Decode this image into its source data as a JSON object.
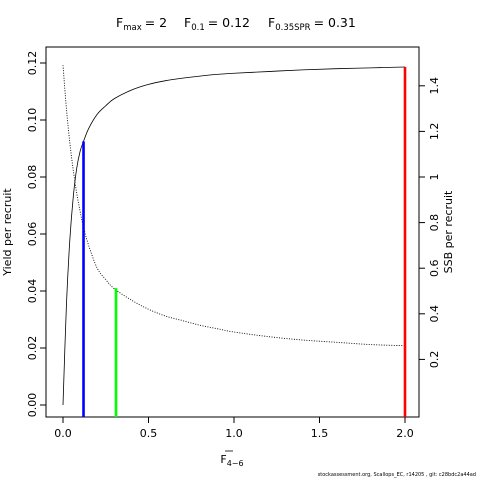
{
  "title_parts": {
    "fmax": {
      "label": "F",
      "sub": "max",
      "value": "= 2"
    },
    "f01": {
      "label": "F",
      "sub": "0.1",
      "value": "= 0.12"
    },
    "fspr": {
      "label": "F",
      "sub": "0.35SPR",
      "value": "= 0.31"
    }
  },
  "chart_data": {
    "type": "line",
    "xlabel": {
      "main": "F",
      "sub": "4−6"
    },
    "ylabel": "Yield per recruit",
    "y2label": "SSB per recruit",
    "xlim": [
      0,
      2
    ],
    "ylim": [
      0,
      0.12
    ],
    "y2lim": [
      0,
      1.5
    ],
    "xticks": [
      "0.0",
      "0.5",
      "1.0",
      "1.5",
      "2.0"
    ],
    "yticks": [
      "0.00",
      "0.02",
      "0.04",
      "0.06",
      "0.08",
      "0.10",
      "0.12"
    ],
    "y2ticks": [
      "0.2",
      "0.4",
      "0.6",
      "0.8",
      "1",
      "1.2",
      "1.4"
    ],
    "series": [
      {
        "style": "solid",
        "axis": "left",
        "x": [
          0,
          0.02,
          0.04,
          0.06,
          0.08,
          0.1,
          0.12,
          0.15,
          0.2,
          0.25,
          0.3,
          0.4,
          0.5,
          0.6,
          0.7,
          0.8,
          0.9,
          1.0,
          1.2,
          1.4,
          1.6,
          1.8,
          2.0
        ],
        "y": [
          0,
          0.035,
          0.058,
          0.073,
          0.083,
          0.089,
          0.0925,
          0.097,
          0.102,
          0.105,
          0.1075,
          0.1105,
          0.1125,
          0.1138,
          0.1147,
          0.1154,
          0.116,
          0.1164,
          0.117,
          0.1176,
          0.118,
          0.1183,
          0.1186
        ]
      },
      {
        "style": "dotted",
        "axis": "right",
        "x": [
          0,
          0.02,
          0.04,
          0.06,
          0.08,
          0.1,
          0.12,
          0.15,
          0.2,
          0.25,
          0.3,
          0.4,
          0.5,
          0.6,
          0.7,
          0.8,
          0.9,
          1.0,
          1.2,
          1.4,
          1.6,
          1.8,
          2.0
        ],
        "y": [
          1.49,
          1.3,
          1.15,
          1.03,
          0.93,
          0.85,
          0.78,
          0.7,
          0.6,
          0.55,
          0.51,
          0.46,
          0.42,
          0.39,
          0.37,
          0.35,
          0.335,
          0.32,
          0.3,
          0.285,
          0.275,
          0.265,
          0.26
        ]
      }
    ],
    "vlines": [
      {
        "x": 0.12,
        "y": 0.0925,
        "color": "#0000ff"
      },
      {
        "x": 0.31,
        "y": 0.041,
        "color": "#00ff00"
      },
      {
        "x": 2.0,
        "y": 0.1186,
        "color": "#ff0000"
      }
    ]
  },
  "footer": "stockassessment.org,  Scallops_EC,  r14205 ,  git:  c28bdc2a44ad"
}
